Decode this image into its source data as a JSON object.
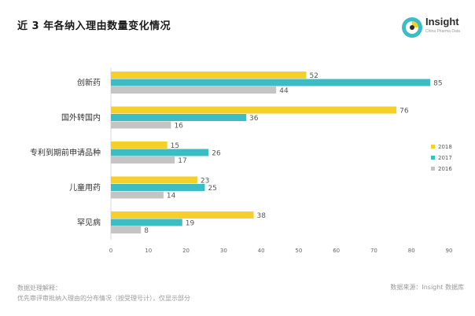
{
  "header": {
    "title": "近 3 年各纳入理由数量变化情况"
  },
  "brand": {
    "name": "Insight",
    "sub": "China Pharma Data",
    "icon": "insight-logo-icon"
  },
  "footer": {
    "note_title": "数据处理解释：",
    "note_body": "优先审评审批纳入理由的分布情况（按受理号计），仅显示部分",
    "source": "数据来源：Insight 数据库"
  },
  "colors": {
    "series_2018": "#f5cf2a",
    "series_2017": "#3cbcc3",
    "series_2016": "#c4c4c4",
    "axis_text": "#555555"
  },
  "chart_data": {
    "type": "bar",
    "orientation": "horizontal",
    "categories": [
      "创新药",
      "国外转国内",
      "专利到期前申请品种",
      "儿童用药",
      "罕见病"
    ],
    "series": [
      {
        "name": "2018",
        "values": [
          52,
          76,
          15,
          23,
          38
        ]
      },
      {
        "name": "2017",
        "values": [
          85,
          36,
          26,
          25,
          19
        ]
      },
      {
        "name": "2016",
        "values": [
          44,
          16,
          17,
          14,
          8
        ]
      }
    ],
    "xlim": [
      0,
      90
    ],
    "xticks": [
      0,
      10,
      20,
      30,
      40,
      50,
      60,
      70,
      80,
      90
    ],
    "grid": false,
    "legend_position": "right"
  }
}
